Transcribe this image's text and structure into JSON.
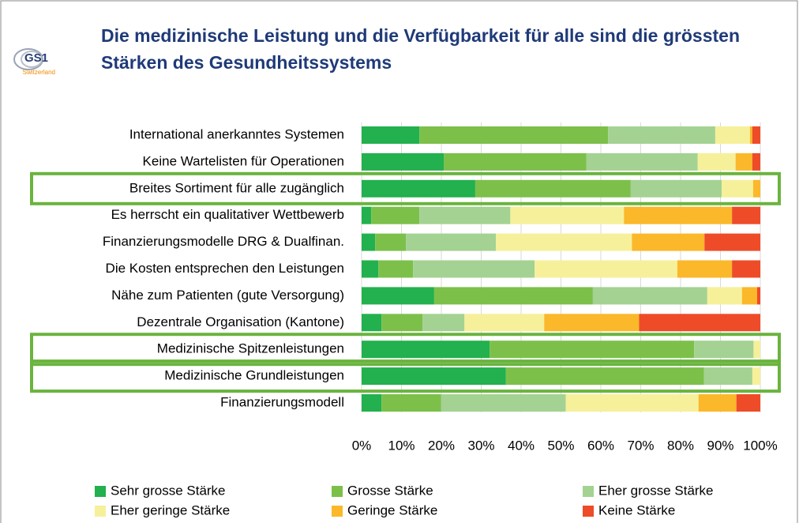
{
  "logo": {
    "text": "GS1",
    "subtext": "Switzerland"
  },
  "chart_data": {
    "type": "stacked_barh",
    "title": "Die medizinische Leistung und die Verfügbarkeit für alle sind die grössten Stärken des Gesundheitssystems",
    "categories": [
      "International anerkanntes Systemen",
      "Keine Wartelisten für Operationen",
      "Breites Sortiment für alle zugänglich",
      "Es herrscht ein qualitativer Wettbewerb",
      "Finanzierungsmodelle DRG & Dualfinan.",
      "Die Kosten entsprechen den Leistungen",
      "Nähe zum Patienten (gute Versorgung)",
      "Dezentrale Organisation (Kantone)",
      "Medizinische Spitzenleistungen",
      "Medizinische Grundleistungen",
      "Finanzierungsmodell"
    ],
    "series": [
      {
        "name": "Sehr grosse Stärke",
        "color": "#23b04e",
        "values": [
          14.5,
          20.6,
          28.5,
          2.4,
          3.4,
          4.2,
          18.2,
          5,
          32.1,
          36.2,
          5
        ]
      },
      {
        "name": "Grosse Stärke",
        "color": "#7cc04a",
        "values": [
          47.3,
          35.8,
          39,
          12.1,
          7.7,
          8.7,
          39.8,
          10.3,
          51.3,
          49.7,
          14.9
        ]
      },
      {
        "name": "Eher grosse Stärke",
        "color": "#a4d292",
        "values": [
          26.9,
          27.9,
          22.8,
          22.8,
          22.6,
          30.5,
          28.7,
          10.5,
          14.9,
          12.1,
          31.3
        ]
      },
      {
        "name": "Eher geringe Stärke",
        "color": "#f6f09a",
        "values": [
          8.7,
          9.5,
          7.9,
          28.5,
          34.1,
          35.8,
          8.7,
          20,
          1.7,
          2.0,
          33.3
        ]
      },
      {
        "name": "Geringe Stärke",
        "color": "#fbb82a",
        "values": [
          0.6,
          4.2,
          1.8,
          27.1,
          18.2,
          13.7,
          3.8,
          23.8,
          0,
          0,
          9.5
        ]
      },
      {
        "name": "Keine Stärke",
        "color": "#ee4b28",
        "values": [
          2.0,
          2.0,
          0,
          7.1,
          14,
          7.1,
          0.8,
          30.4,
          0,
          0,
          6
        ]
      }
    ],
    "xlim": [
      0,
      100
    ],
    "xticks": [
      {
        "value": 0,
        "label": "0%"
      },
      {
        "value": 10,
        "label": "10%"
      },
      {
        "value": 20,
        "label": "20%"
      },
      {
        "value": 30,
        "label": "30%"
      },
      {
        "value": 40,
        "label": "40%"
      },
      {
        "value": 50,
        "label": "50%"
      },
      {
        "value": 60,
        "label": "60%"
      },
      {
        "value": 70,
        "label": "70%"
      },
      {
        "value": 80,
        "label": "80%"
      },
      {
        "value": 90,
        "label": "90%"
      },
      {
        "value": 100,
        "label": "100%"
      }
    ],
    "grid": true,
    "legend": "bottom",
    "highlighted": [
      2,
      8,
      9
    ],
    "highlight_color": "#6ab43e"
  }
}
